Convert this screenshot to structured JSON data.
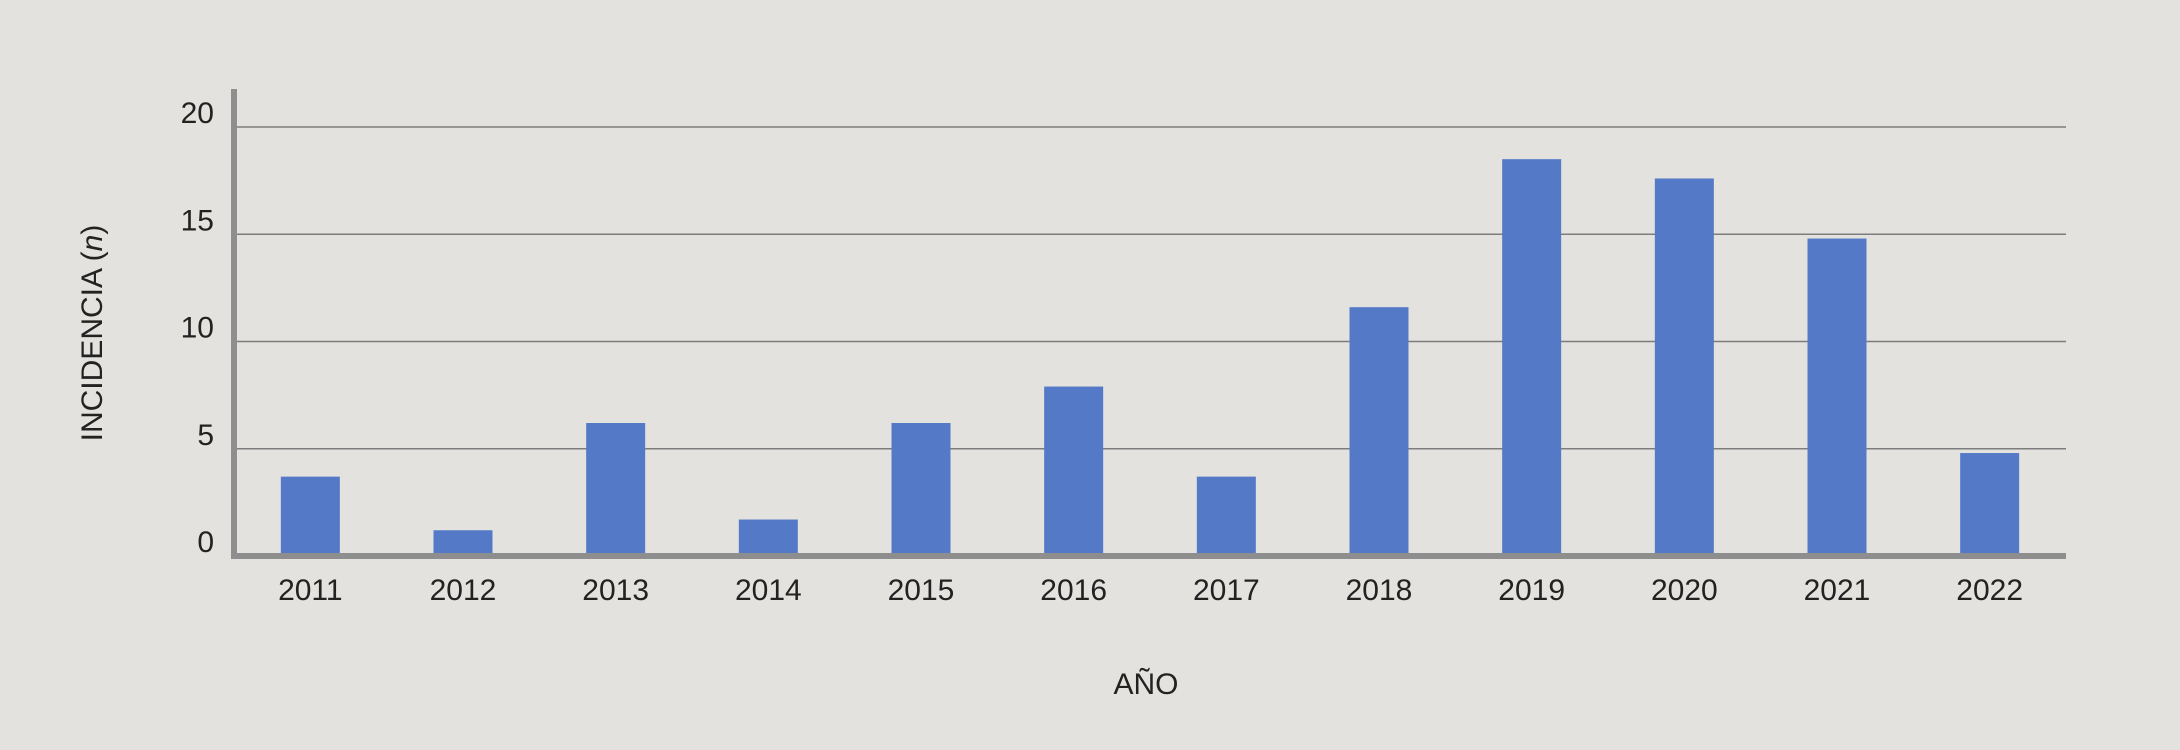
{
  "chart_data": {
    "type": "bar",
    "categories": [
      "2011",
      "2012",
      "2013",
      "2014",
      "2015",
      "2016",
      "2017",
      "2018",
      "2019",
      "2020",
      "2021",
      "2022"
    ],
    "values": [
      3.7,
      1.2,
      6.2,
      1.7,
      6.2,
      7.9,
      3.7,
      11.6,
      18.5,
      17.6,
      14.8,
      4.8
    ],
    "xlabel": "AÑO",
    "ylabel_main": "INCIDENCIA (",
    "ylabel_italic": "n",
    "ylabel_close": ")",
    "ylim": [
      0,
      20
    ],
    "yticks": [
      "0",
      "5",
      "10",
      "15",
      "20"
    ],
    "grid": true,
    "bar_color": "#5479c6",
    "grid_color": "#7d7d7d",
    "axis_color": "#8e8e8e",
    "background_color": "#e3e2df"
  }
}
